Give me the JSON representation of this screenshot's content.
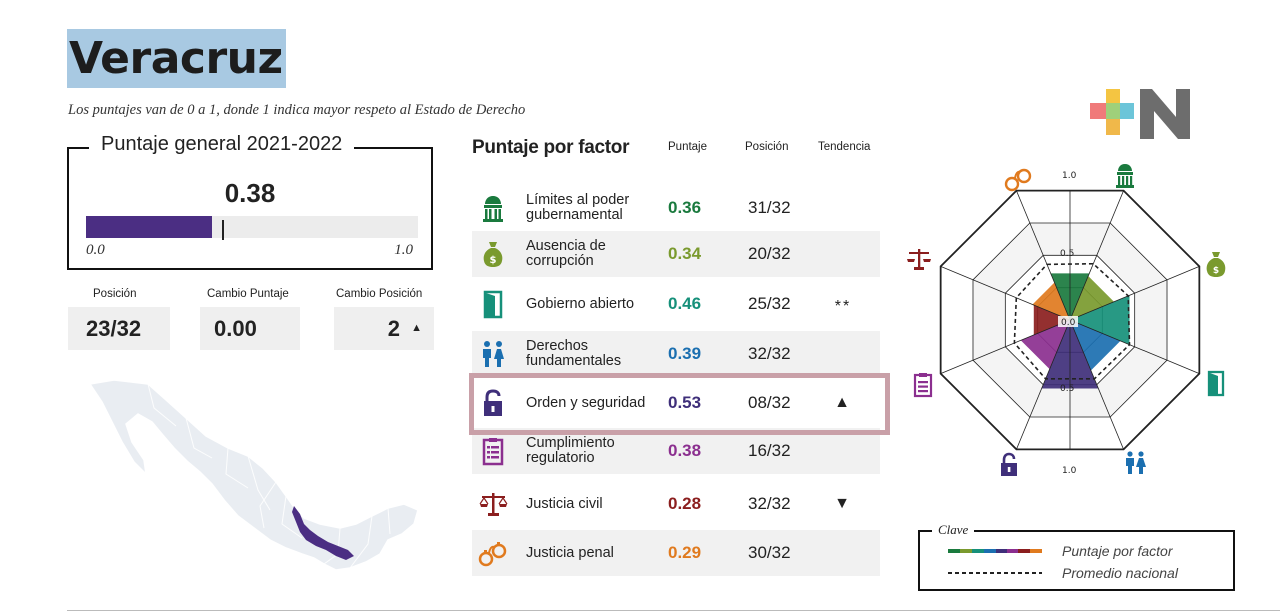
{
  "title": "Veracruz",
  "subtitle": "Los puntajes van de 0 a 1, donde 1 indica mayor respeto al Estado de Derecho",
  "overall": {
    "heading": "Puntaje general 2021-2022",
    "score": "0.38",
    "score_fraction": 0.38,
    "min_label": "0.0",
    "max_label": "1.0"
  },
  "stats": [
    {
      "label": "Posición",
      "value": "23/32"
    },
    {
      "label": "Cambio Puntaje",
      "value": "0.00"
    },
    {
      "label": "Cambio Posición",
      "value": "2",
      "icon": "triangle-up-icon"
    }
  ],
  "factor_table": {
    "heading": "Puntaje por factor",
    "columns": [
      "Puntaje",
      "Posición",
      "Tendencia"
    ],
    "rows": [
      {
        "name": "Límites al poder gubernamental",
        "score": "0.36",
        "position": "31/32",
        "trend": "",
        "color": "#1a7a3e",
        "icon": "government-building-icon"
      },
      {
        "name": "Ausencia de corrupción",
        "score": "0.34",
        "position": "20/32",
        "trend": "",
        "color": "#7a9a2e",
        "icon": "money-bag-icon"
      },
      {
        "name": "Gobierno abierto",
        "score": "0.46",
        "position": "25/32",
        "trend": "**",
        "color": "#16907a",
        "icon": "open-door-icon"
      },
      {
        "name": "Derechos fundamentales",
        "score": "0.39",
        "position": "32/32",
        "trend": "",
        "color": "#1b6fb0",
        "icon": "people-icon"
      },
      {
        "name": "Orden y seguridad",
        "score": "0.53",
        "position": "08/32",
        "trend": "▲",
        "color": "#3f2f7a",
        "icon": "padlock-icon"
      },
      {
        "name": "Cumplimiento regulatorio",
        "score": "0.38",
        "position": "16/32",
        "trend": "",
        "color": "#8b2f8f",
        "icon": "clipboard-icon"
      },
      {
        "name": "Justicia civil",
        "score": "0.28",
        "position": "32/32",
        "trend": "▼",
        "color": "#8b1e1e",
        "icon": "scales-icon"
      },
      {
        "name": "Justicia penal",
        "score": "0.29",
        "position": "30/32",
        "trend": "",
        "color": "#e07a1e",
        "icon": "handcuffs-icon"
      }
    ]
  },
  "radar": {
    "tick_labels": [
      "1.0",
      "0.5",
      "0.0",
      "0.5",
      "1.0"
    ],
    "factor_scores": [
      0.36,
      0.34,
      0.46,
      0.39,
      0.53,
      0.38,
      0.28,
      0.29
    ],
    "national_average": [
      0.45,
      0.42,
      0.48,
      0.44,
      0.47,
      0.44,
      0.42,
      0.41
    ]
  },
  "legend": {
    "title": "Clave",
    "factor_label": "Puntaje por factor",
    "average_label": "Promedio nacional"
  },
  "colors": {
    "accent_purple": "#4b2e83",
    "title_highlight": "#a8c9e2",
    "highlight_border": "#c9a0a8"
  }
}
